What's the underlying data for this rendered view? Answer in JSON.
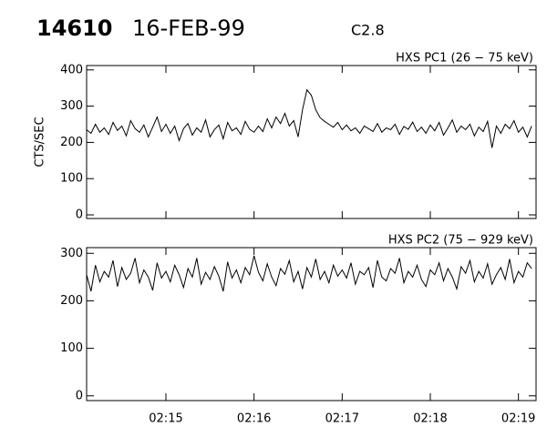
{
  "header": {
    "id": "14610",
    "date": "16-FEB-99",
    "class": "C2.8"
  },
  "chart_data": [
    {
      "type": "line",
      "title": "HXS PC1 (26 − 75 keV)",
      "y_label": "CTS/SEC",
      "color": "#000000",
      "x": [
        14.1,
        14.15,
        14.2,
        14.25,
        14.3,
        14.35,
        14.4,
        14.45,
        14.5,
        14.55,
        14.6,
        14.65,
        14.7,
        14.75,
        14.8,
        14.85,
        14.9,
        14.95,
        15.0,
        15.05,
        15.1,
        15.15,
        15.2,
        15.25,
        15.3,
        15.35,
        15.4,
        15.45,
        15.5,
        15.55,
        15.6,
        15.65,
        15.7,
        15.75,
        15.8,
        15.85,
        15.9,
        15.95,
        16.0,
        16.05,
        16.1,
        16.15,
        16.2,
        16.25,
        16.3,
        16.35,
        16.4,
        16.45,
        16.5,
        16.55,
        16.6,
        16.65,
        16.7,
        16.75,
        16.8,
        16.85,
        16.9,
        16.95,
        17.0,
        17.05,
        17.1,
        17.15,
        17.2,
        17.25,
        17.3,
        17.35,
        17.4,
        17.45,
        17.5,
        17.55,
        17.6,
        17.65,
        17.7,
        17.75,
        17.8,
        17.85,
        17.9,
        17.95,
        18.0,
        18.05,
        18.1,
        18.15,
        18.2,
        18.25,
        18.3,
        18.35,
        18.4,
        18.45,
        18.5,
        18.55,
        18.6,
        18.65,
        18.7,
        18.75,
        18.8,
        18.85,
        18.9,
        18.95,
        19.0,
        19.05,
        19.1,
        19.15
      ],
      "values": [
        235,
        225,
        250,
        228,
        240,
        222,
        255,
        233,
        245,
        218,
        260,
        238,
        228,
        248,
        215,
        242,
        270,
        230,
        250,
        225,
        245,
        205,
        238,
        252,
        220,
        240,
        228,
        262,
        215,
        235,
        248,
        210,
        255,
        232,
        240,
        222,
        258,
        236,
        228,
        245,
        230,
        265,
        240,
        270,
        252,
        280,
        245,
        260,
        215,
        290,
        345,
        330,
        290,
        268,
        258,
        250,
        242,
        255,
        235,
        248,
        232,
        240,
        225,
        245,
        238,
        230,
        252,
        228,
        240,
        235,
        250,
        222,
        244,
        236,
        256,
        230,
        242,
        225,
        248,
        232,
        255,
        220,
        240,
        262,
        228,
        245,
        235,
        250,
        218,
        242,
        230,
        258,
        185,
        245,
        225,
        250,
        238,
        260,
        228,
        242,
        215,
        245
      ],
      "xlim": [
        14.1,
        19.2
      ],
      "ylim": [
        -10,
        412
      ],
      "yticks": [
        0,
        100,
        200,
        300,
        400
      ],
      "xticks": [
        {
          "value": 15,
          "label": "02:15"
        },
        {
          "value": 16,
          "label": "02:16"
        },
        {
          "value": 17,
          "label": "02:17"
        },
        {
          "value": 18,
          "label": "02:18"
        },
        {
          "value": 19,
          "label": "02:19"
        }
      ]
    },
    {
      "type": "line",
      "title": "HXS PC2 (75 − 929 keV)",
      "color": "#000000",
      "x": [
        14.1,
        14.15,
        14.2,
        14.25,
        14.3,
        14.35,
        14.4,
        14.45,
        14.5,
        14.55,
        14.6,
        14.65,
        14.7,
        14.75,
        14.8,
        14.85,
        14.9,
        14.95,
        15.0,
        15.05,
        15.1,
        15.15,
        15.2,
        15.25,
        15.3,
        15.35,
        15.4,
        15.45,
        15.5,
        15.55,
        15.6,
        15.65,
        15.7,
        15.75,
        15.8,
        15.85,
        15.9,
        15.95,
        16.0,
        16.05,
        16.1,
        16.15,
        16.2,
        16.25,
        16.3,
        16.35,
        16.4,
        16.45,
        16.5,
        16.55,
        16.6,
        16.65,
        16.7,
        16.75,
        16.8,
        16.85,
        16.9,
        16.95,
        17.0,
        17.05,
        17.1,
        17.15,
        17.2,
        17.25,
        17.3,
        17.35,
        17.4,
        17.45,
        17.5,
        17.55,
        17.6,
        17.65,
        17.7,
        17.75,
        17.8,
        17.85,
        17.9,
        17.95,
        18.0,
        18.05,
        18.1,
        18.15,
        18.2,
        18.25,
        18.3,
        18.35,
        18.4,
        18.45,
        18.5,
        18.55,
        18.6,
        18.65,
        18.7,
        18.75,
        18.8,
        18.85,
        18.9,
        18.95,
        19.0,
        19.05,
        19.1,
        19.15
      ],
      "values": [
        255,
        220,
        275,
        240,
        262,
        250,
        285,
        230,
        270,
        245,
        258,
        290,
        238,
        265,
        250,
        222,
        280,
        248,
        262,
        240,
        275,
        255,
        228,
        268,
        250,
        290,
        235,
        260,
        245,
        272,
        252,
        220,
        282,
        248,
        265,
        238,
        270,
        255,
        295,
        260,
        242,
        278,
        250,
        232,
        268,
        256,
        285,
        240,
        262,
        225,
        270,
        250,
        288,
        245,
        262,
        238,
        275,
        252,
        265,
        248,
        280,
        235,
        262,
        255,
        270,
        228,
        285,
        250,
        242,
        268,
        258,
        290,
        238,
        262,
        250,
        275,
        245,
        230,
        265,
        255,
        280,
        242,
        268,
        250,
        225,
        272,
        258,
        285,
        240,
        262,
        248,
        278,
        235,
        255,
        270,
        245,
        288,
        238,
        262,
        250,
        280,
        268
      ],
      "xlim": [
        14.1,
        19.2
      ],
      "ylim": [
        -10,
        312
      ],
      "yticks": [
        0,
        100,
        200,
        300
      ],
      "xticks": [
        {
          "value": 15,
          "label": "02:15"
        },
        {
          "value": 16,
          "label": "02:16"
        },
        {
          "value": 17,
          "label": "02:17"
        },
        {
          "value": 18,
          "label": "02:18"
        },
        {
          "value": 19,
          "label": "02:19"
        }
      ]
    }
  ]
}
